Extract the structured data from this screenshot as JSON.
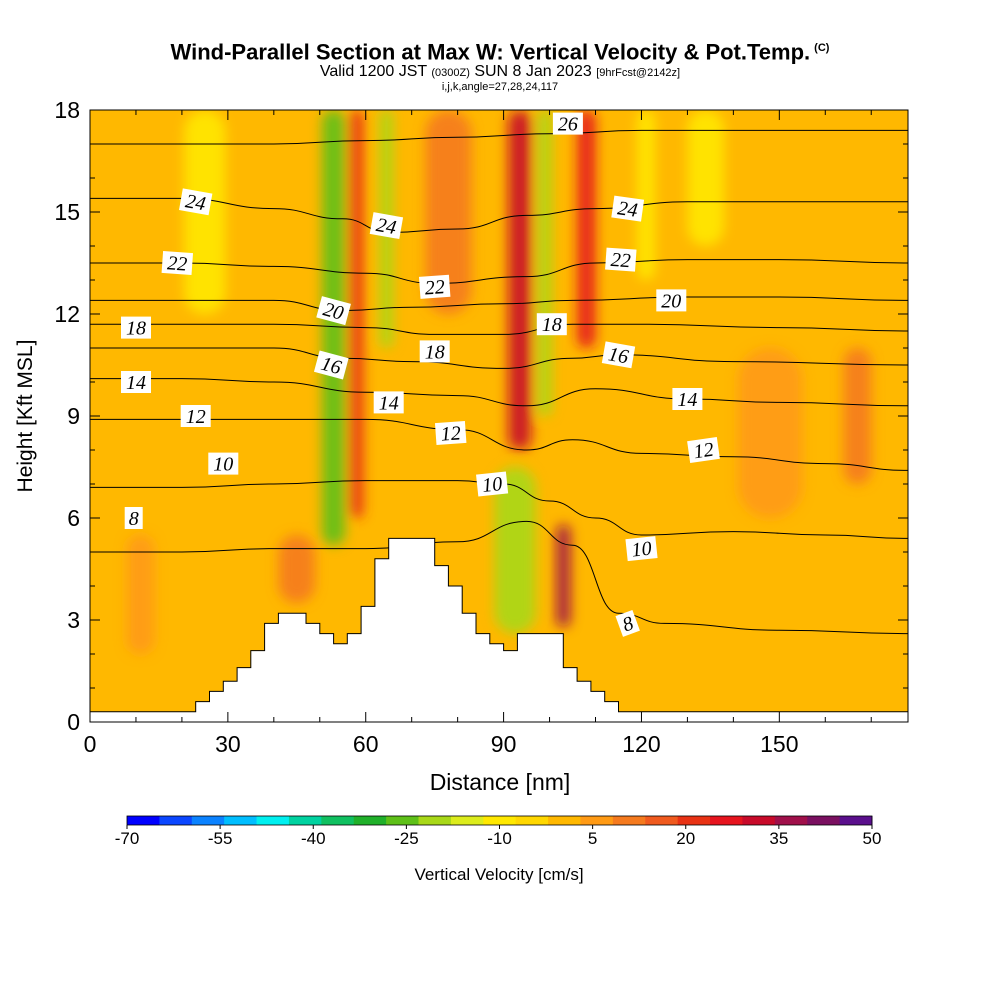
{
  "header": {
    "title": "Wind-Parallel Section at Max W: Vertical Velocity & Pot.Temp.",
    "title_tag": "(C)",
    "subtitle_a": "Valid 1200 JST",
    "subtitle_utc": "(0300Z)",
    "subtitle_b": "SUN 8 Jan 2023",
    "subtitle_fcst": "[9hrFcst@2142z]",
    "info": "i,j,k,angle=27,28,24,117"
  },
  "chart_data": {
    "type": "heatmap",
    "xlabel": "Distance [nm]",
    "ylabel": "Height [Kft MSL]",
    "xlim": [
      0,
      178
    ],
    "ylim": [
      0,
      18
    ],
    "x_ticks": [
      0,
      30,
      60,
      90,
      120,
      150
    ],
    "y_ticks": [
      0,
      3,
      6,
      9,
      12,
      15,
      18
    ],
    "colorbar": {
      "label": "Vertical Velocity [cm/s]",
      "tick_labels": [
        "-70",
        "-55",
        "-40",
        "-25",
        "-10",
        "5",
        "20",
        "35",
        "50"
      ],
      "colors": [
        "#0000ff",
        "#0a46ff",
        "#0a82ff",
        "#00beff",
        "#00f0f0",
        "#00d2a0",
        "#10c060",
        "#20b02a",
        "#5ec018",
        "#a8d818",
        "#dcec1c",
        "#ffe800",
        "#ffd700",
        "#ffb800",
        "#ff9a14",
        "#f57a1e",
        "#f05a1e",
        "#e83214",
        "#e6141e",
        "#c80a2a",
        "#a0104a",
        "#7a1060",
        "#5a0f8c"
      ]
    },
    "terrain": [
      [
        0,
        0.3
      ],
      [
        15,
        0.3
      ],
      [
        20,
        0.3
      ],
      [
        23,
        0.6
      ],
      [
        26,
        0.9
      ],
      [
        29,
        1.2
      ],
      [
        32,
        1.6
      ],
      [
        35,
        2.1
      ],
      [
        38,
        2.9
      ],
      [
        41,
        3.2
      ],
      [
        44,
        3.2
      ],
      [
        47,
        2.9
      ],
      [
        50,
        2.6
      ],
      [
        53,
        2.3
      ],
      [
        56,
        2.6
      ],
      [
        59,
        3.4
      ],
      [
        62,
        4.8
      ],
      [
        65,
        5.4
      ],
      [
        69,
        5.4
      ],
      [
        72,
        5.4
      ],
      [
        75,
        4.6
      ],
      [
        78,
        4.0
      ],
      [
        81,
        3.2
      ],
      [
        84,
        2.6
      ],
      [
        87,
        2.3
      ],
      [
        90,
        2.1
      ],
      [
        93,
        2.6
      ],
      [
        96,
        2.6
      ],
      [
        100,
        2.6
      ],
      [
        103,
        1.6
      ],
      [
        106,
        1.2
      ],
      [
        109,
        0.9
      ],
      [
        112,
        0.6
      ],
      [
        115,
        0.3
      ],
      [
        120,
        0.3
      ],
      [
        178,
        0.3
      ]
    ],
    "theta_contours": [
      {
        "value": 8,
        "points": [
          [
            0,
            5.0
          ],
          [
            20,
            5.0
          ],
          [
            40,
            5.1
          ],
          [
            60,
            5.1
          ],
          [
            80,
            5.3
          ],
          [
            95,
            5.9
          ],
          [
            105,
            5.2
          ],
          [
            115,
            3.2
          ],
          [
            125,
            2.9
          ],
          [
            150,
            2.7
          ],
          [
            178,
            2.6
          ]
        ]
      },
      {
        "value": 10,
        "points": [
          [
            0,
            6.9
          ],
          [
            20,
            6.9
          ],
          [
            40,
            7.0
          ],
          [
            60,
            7.1
          ],
          [
            80,
            7.1
          ],
          [
            90,
            7.0
          ],
          [
            100,
            6.5
          ],
          [
            110,
            6.0
          ],
          [
            120,
            5.5
          ],
          [
            140,
            5.6
          ],
          [
            160,
            5.5
          ],
          [
            178,
            5.4
          ]
        ]
      },
      {
        "value": 12,
        "points": [
          [
            0,
            8.9
          ],
          [
            20,
            8.9
          ],
          [
            40,
            8.9
          ],
          [
            60,
            8.9
          ],
          [
            80,
            8.6
          ],
          [
            95,
            8.0
          ],
          [
            105,
            8.3
          ],
          [
            120,
            7.9
          ],
          [
            140,
            7.8
          ],
          [
            160,
            7.6
          ],
          [
            178,
            7.4
          ]
        ]
      },
      {
        "value": 14,
        "points": [
          [
            0,
            10.1
          ],
          [
            20,
            10.1
          ],
          [
            40,
            10.0
          ],
          [
            60,
            9.7
          ],
          [
            80,
            9.6
          ],
          [
            95,
            9.3
          ],
          [
            110,
            9.8
          ],
          [
            130,
            9.5
          ],
          [
            150,
            9.4
          ],
          [
            178,
            9.3
          ]
        ]
      },
      {
        "value": 16,
        "points": [
          [
            0,
            11.0
          ],
          [
            20,
            11.0
          ],
          [
            40,
            11.0
          ],
          [
            55,
            10.7
          ],
          [
            70,
            10.6
          ],
          [
            90,
            10.4
          ],
          [
            105,
            10.7
          ],
          [
            115,
            10.8
          ],
          [
            140,
            10.6
          ],
          [
            178,
            10.5
          ]
        ]
      },
      {
        "value": 18,
        "points": [
          [
            0,
            11.7
          ],
          [
            20,
            11.7
          ],
          [
            40,
            11.7
          ],
          [
            60,
            11.6
          ],
          [
            75,
            11.4
          ],
          [
            90,
            11.4
          ],
          [
            105,
            11.7
          ],
          [
            120,
            11.7
          ],
          [
            150,
            11.6
          ],
          [
            178,
            11.5
          ]
        ]
      },
      {
        "value": 20,
        "points": [
          [
            0,
            12.4
          ],
          [
            20,
            12.4
          ],
          [
            40,
            12.4
          ],
          [
            55,
            12.1
          ],
          [
            70,
            12.2
          ],
          [
            90,
            12.3
          ],
          [
            105,
            12.4
          ],
          [
            130,
            12.5
          ],
          [
            150,
            12.5
          ],
          [
            178,
            12.4
          ]
        ]
      },
      {
        "value": 22,
        "points": [
          [
            0,
            13.5
          ],
          [
            20,
            13.5
          ],
          [
            40,
            13.4
          ],
          [
            60,
            13.2
          ],
          [
            75,
            12.9
          ],
          [
            95,
            13.1
          ],
          [
            110,
            13.5
          ],
          [
            130,
            13.6
          ],
          [
            150,
            13.6
          ],
          [
            178,
            13.5
          ]
        ]
      },
      {
        "value": 24,
        "points": [
          [
            0,
            15.4
          ],
          [
            20,
            15.4
          ],
          [
            40,
            15.1
          ],
          [
            55,
            14.8
          ],
          [
            65,
            14.4
          ],
          [
            80,
            14.5
          ],
          [
            95,
            14.9
          ],
          [
            110,
            15.1
          ],
          [
            130,
            15.3
          ],
          [
            150,
            15.3
          ],
          [
            178,
            15.3
          ]
        ]
      },
      {
        "value": 26,
        "points": [
          [
            0,
            17.0
          ],
          [
            20,
            17.0
          ],
          [
            40,
            17.0
          ],
          [
            60,
            17.1
          ],
          [
            80,
            17.2
          ],
          [
            100,
            17.3
          ],
          [
            120,
            17.4
          ],
          [
            150,
            17.4
          ],
          [
            178,
            17.4
          ]
        ]
      }
    ],
    "contour_labels": [
      {
        "text": "24",
        "x": 23,
        "y": 15.3,
        "angle": 10
      },
      {
        "text": "22",
        "x": 19,
        "y": 13.5,
        "angle": 4
      },
      {
        "text": "18",
        "x": 10,
        "y": 11.6,
        "angle": 0
      },
      {
        "text": "14",
        "x": 10,
        "y": 10.0,
        "angle": 0
      },
      {
        "text": "12",
        "x": 23,
        "y": 9.0,
        "angle": 0
      },
      {
        "text": "10",
        "x": 29,
        "y": 7.6,
        "angle": 0
      },
      {
        "text": "8",
        "x": 9.5,
        "y": 6.0,
        "angle": 0
      },
      {
        "text": "24",
        "x": 64.5,
        "y": 14.6,
        "angle": 10
      },
      {
        "text": "22",
        "x": 75,
        "y": 12.8,
        "angle": -4
      },
      {
        "text": "20",
        "x": 53,
        "y": 12.1,
        "angle": 15
      },
      {
        "text": "18",
        "x": 75,
        "y": 10.9,
        "angle": 0
      },
      {
        "text": "16",
        "x": 52.5,
        "y": 10.5,
        "angle": 15
      },
      {
        "text": "14",
        "x": 65,
        "y": 9.4,
        "angle": 0
      },
      {
        "text": "12",
        "x": 78.5,
        "y": 8.5,
        "angle": -4
      },
      {
        "text": "10",
        "x": 87.5,
        "y": 7.0,
        "angle": -6
      },
      {
        "text": "26",
        "x": 104,
        "y": 17.6,
        "angle": 0
      },
      {
        "text": "24",
        "x": 117,
        "y": 15.1,
        "angle": 8
      },
      {
        "text": "22",
        "x": 115.5,
        "y": 13.6,
        "angle": 4
      },
      {
        "text": "18",
        "x": 100.5,
        "y": 11.7,
        "angle": 0
      },
      {
        "text": "16",
        "x": 115,
        "y": 10.8,
        "angle": 10
      },
      {
        "text": "20",
        "x": 126.5,
        "y": 12.4,
        "angle": 0
      },
      {
        "text": "14",
        "x": 130,
        "y": 9.5,
        "angle": 0
      },
      {
        "text": "12",
        "x": 133.5,
        "y": 8.0,
        "angle": -8
      },
      {
        "text": "10",
        "x": 120,
        "y": 5.1,
        "angle": -6
      },
      {
        "text": "8",
        "x": 117,
        "y": 2.9,
        "angle": -20
      }
    ],
    "velocity_features": [
      {
        "x": 53,
        "y0": 5.2,
        "y1": 18,
        "width": 5,
        "value": -28
      },
      {
        "x": 64.5,
        "y0": 11,
        "y1": 18,
        "width": 3,
        "value": -22
      },
      {
        "x": 92.5,
        "y0": 2.6,
        "y1": 7.5,
        "width": 9,
        "value": -22
      },
      {
        "x": 99,
        "y0": 9,
        "y1": 18,
        "width": 3,
        "value": -20
      },
      {
        "x": 121,
        "y0": 13,
        "y1": 18,
        "width": 4,
        "value": -12
      },
      {
        "x": 134,
        "y0": 14,
        "y1": 18,
        "width": 8,
        "value": -8
      },
      {
        "x": 25,
        "y0": 12,
        "y1": 18,
        "width": 9,
        "value": -8
      },
      {
        "x": 58,
        "y0": 6,
        "y1": 18,
        "width": 3,
        "value": 20
      },
      {
        "x": 93.5,
        "y0": 8,
        "y1": 18,
        "width": 5,
        "value": 32
      },
      {
        "x": 108,
        "y0": 11,
        "y1": 18,
        "width": 4,
        "value": 25
      },
      {
        "x": 103,
        "y0": 2.8,
        "y1": 5.8,
        "width": 3,
        "value": 35
      },
      {
        "x": 78,
        "y0": 12,
        "y1": 18,
        "width": 10,
        "value": 12
      },
      {
        "x": 11,
        "y0": 2.0,
        "y1": 5.5,
        "width": 6,
        "value": 8
      },
      {
        "x": 148,
        "y0": 6,
        "y1": 11,
        "width": 14,
        "value": 8
      },
      {
        "x": 167,
        "y0": 7,
        "y1": 11,
        "width": 6,
        "value": 10
      },
      {
        "x": 45,
        "y0": 3.5,
        "y1": 5.5,
        "width": 8,
        "value": 10
      }
    ],
    "background_value": 1,
    "grid": false
  }
}
